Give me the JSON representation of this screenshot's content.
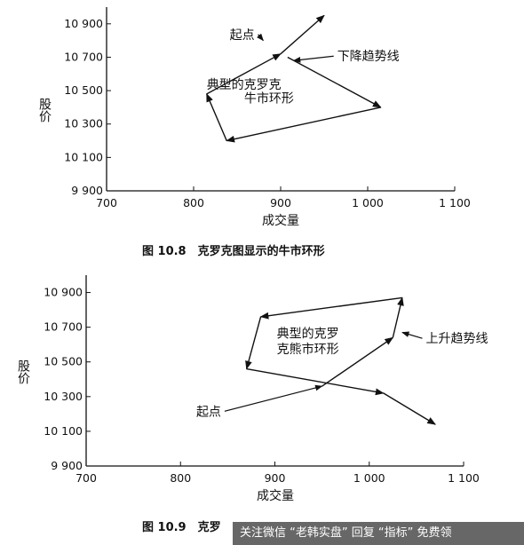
{
  "chart_data": [
    {
      "type": "line",
      "caption": "图 10.8　克罗克图显示的牛市环形",
      "xlabel": "成交量",
      "ylabel": "股价",
      "xlim": [
        700,
        1100
      ],
      "ylim": [
        9900,
        11000
      ],
      "xticks": [
        700,
        800,
        900,
        1000,
        1100
      ],
      "xtick_labels": [
        "700",
        "800",
        "900",
        "1 000",
        "1 100"
      ],
      "yticks": [
        9900,
        10100,
        10300,
        10500,
        10700,
        10900
      ],
      "ytick_labels": [
        "9 900",
        "10 100",
        "10 300",
        "10 500",
        "10 700",
        "10 900"
      ],
      "path": [
        {
          "x": 908,
          "y": 10700
        },
        {
          "x": 1015,
          "y": 10400
        },
        {
          "x": 838,
          "y": 10200
        },
        {
          "x": 815,
          "y": 10480
        },
        {
          "x": 900,
          "y": 10720
        },
        {
          "x": 950,
          "y": 10950
        }
      ],
      "annotations": [
        {
          "text": "起点",
          "x": 870,
          "y": 10810,
          "target": {
            "x": 880,
            "y": 10800
          }
        },
        {
          "text": "下降趋势线",
          "x": 965,
          "y": 10680,
          "target": {
            "x": 915,
            "y": 10680
          }
        },
        {
          "text": "典型的克罗克",
          "x": 815,
          "y": 10510
        },
        {
          "text": "牛市环形",
          "x": 858,
          "y": 10430
        }
      ]
    },
    {
      "type": "line",
      "caption": "图 10.9　克罗",
      "xlabel": "成交量",
      "ylabel": "股价",
      "xlim": [
        700,
        1100
      ],
      "ylim": [
        9900,
        11000
      ],
      "xticks": [
        700,
        800,
        900,
        1000,
        1100
      ],
      "xtick_labels": [
        "700",
        "800",
        "900",
        "1 000",
        "1 100"
      ],
      "yticks": [
        9900,
        10100,
        10300,
        10500,
        10700,
        10900
      ],
      "ytick_labels": [
        "9 900",
        "10 100",
        "10 300",
        "10 500",
        "10 700",
        "10 900"
      ],
      "path": [
        {
          "x": 950,
          "y": 10360
        },
        {
          "x": 1025,
          "y": 10640
        },
        {
          "x": 1035,
          "y": 10870
        },
        {
          "x": 885,
          "y": 10760
        },
        {
          "x": 870,
          "y": 10460
        },
        {
          "x": 1015,
          "y": 10320
        },
        {
          "x": 1070,
          "y": 10140
        }
      ],
      "annotations": [
        {
          "text": "起点",
          "x": 843,
          "y": 10190,
          "target": {
            "x": 950,
            "y": 10360
          }
        },
        {
          "text": "上升趋势线",
          "x": 1060,
          "y": 10610,
          "target": {
            "x": 1035,
            "y": 10670
          }
        },
        {
          "text": "典型的克罗",
          "x": 902,
          "y": 10640
        },
        {
          "text": "克熊市环形",
          "x": 902,
          "y": 10550
        }
      ]
    }
  ],
  "watermark": {
    "text": "关注微信 “老韩实盘” 回复 “指标” 免费领"
  }
}
